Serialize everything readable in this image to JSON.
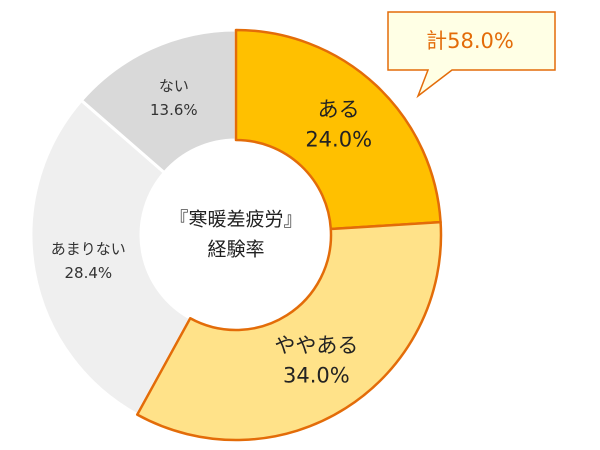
{
  "chart_data": {
    "type": "donut",
    "center_text": [
      "『寒暖差疲労』",
      "経験率"
    ],
    "categories": [
      "ある",
      "ややある",
      "あまりない",
      "ない"
    ],
    "values": [
      24.0,
      34.0,
      28.4,
      13.6
    ],
    "value_labels": [
      "24.0%",
      "34.0%",
      "28.4%",
      "13.6%"
    ],
    "colors": [
      "#ffc000",
      "#ffe289",
      "#efefef",
      "#d9d9d9"
    ],
    "edge_colors": [
      "#e36c09",
      "#e36c09",
      "#ffffff",
      "#ffffff"
    ],
    "annotation": "計58.0%",
    "annotation_color": "#e36c09"
  }
}
